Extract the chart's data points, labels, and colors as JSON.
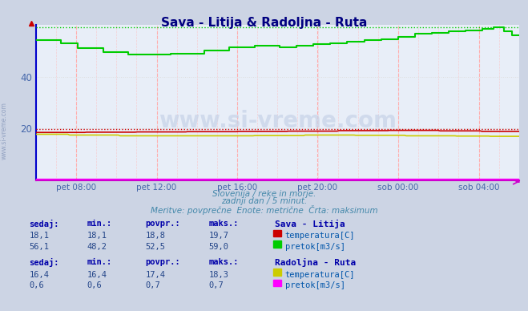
{
  "title": "Sava - Litija & Radoljna - Ruta",
  "title_color": "#000080",
  "bg_color": "#ccd4e4",
  "plot_bg_color": "#e8eef8",
  "xlabel_color": "#4466aa",
  "ylabel_color": "#4466aa",
  "watermark": "www.si-vreme.com",
  "subtitle1": "Slovenija / reke in morje.",
  "subtitle2": "zadnji dan / 5 minut.",
  "subtitle3": "Meritve: povprečne  Enote: metrične  Črta: maksimum",
  "subtitle_color": "#4488aa",
  "xlabels": [
    "pet 08:00",
    "pet 12:00",
    "pet 16:00",
    "pet 20:00",
    "sob 00:00",
    "sob 04:00"
  ],
  "xlabels_pos": [
    0.083,
    0.25,
    0.417,
    0.583,
    0.75,
    0.917
  ],
  "ylim": [
    0,
    60
  ],
  "yticks": [
    20,
    40
  ],
  "n_points": 288,
  "sava_temp_color": "#cc0000",
  "sava_flow_color": "#00cc00",
  "radoljna_temp_color": "#cccc00",
  "radoljna_flow_color": "#ff00ff",
  "left_spine_color": "#0000cc",
  "bottom_spine_color": "#cc00cc",
  "table_header_color": "#0000aa",
  "table_label_color": "#0055aa",
  "table_value_color": "#224488",
  "sava_label": "Sava - Litija",
  "radoljna_label": "Radoljna - Ruta",
  "col_headers": [
    "sedaj:",
    "min.:",
    "povpr.:",
    "maks.:"
  ],
  "sava_temp_row": [
    "18,1",
    "18,1",
    "18,8",
    "19,7"
  ],
  "sava_flow_row": [
    "56,1",
    "48,2",
    "52,5",
    "59,0"
  ],
  "radoljna_temp_row": [
    "16,4",
    "16,4",
    "17,4",
    "18,3"
  ],
  "radoljna_flow_row": [
    "0,6",
    "0,6",
    "0,7",
    "0,7"
  ],
  "temp_label": "temperatura[C]",
  "flow_label": "pretok[m3/s]",
  "side_text": "www.si-vreme.com"
}
